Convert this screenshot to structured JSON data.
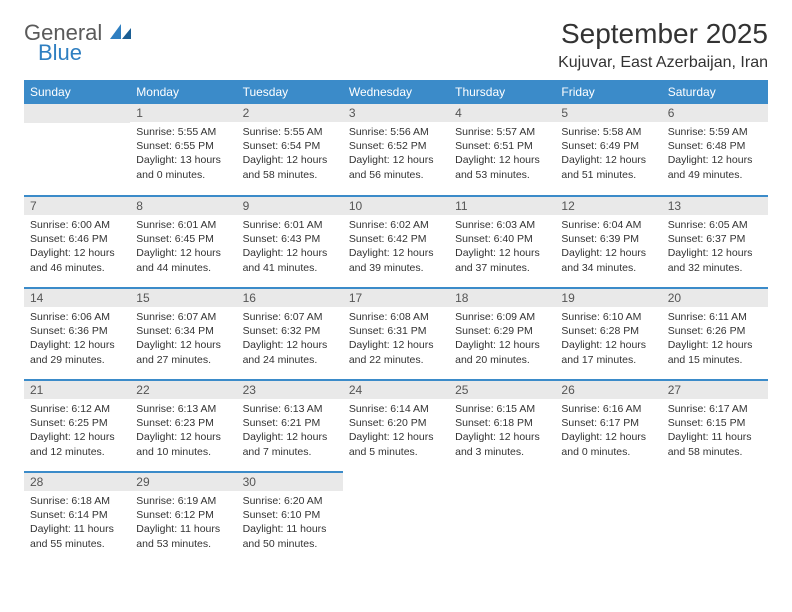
{
  "logo": {
    "line1": "General",
    "line2": "Blue"
  },
  "title": "September 2025",
  "location": "Kujuvar, East Azerbaijan, Iran",
  "header_bg": "#3b8bc9",
  "daynum_bg": "#e9e9e9",
  "weekdays": [
    "Sunday",
    "Monday",
    "Tuesday",
    "Wednesday",
    "Thursday",
    "Friday",
    "Saturday"
  ],
  "weeks": [
    [
      null,
      {
        "n": "1",
        "sr": "Sunrise: 5:55 AM",
        "ss": "Sunset: 6:55 PM",
        "d1": "Daylight: 13 hours",
        "d2": "and 0 minutes."
      },
      {
        "n": "2",
        "sr": "Sunrise: 5:55 AM",
        "ss": "Sunset: 6:54 PM",
        "d1": "Daylight: 12 hours",
        "d2": "and 58 minutes."
      },
      {
        "n": "3",
        "sr": "Sunrise: 5:56 AM",
        "ss": "Sunset: 6:52 PM",
        "d1": "Daylight: 12 hours",
        "d2": "and 56 minutes."
      },
      {
        "n": "4",
        "sr": "Sunrise: 5:57 AM",
        "ss": "Sunset: 6:51 PM",
        "d1": "Daylight: 12 hours",
        "d2": "and 53 minutes."
      },
      {
        "n": "5",
        "sr": "Sunrise: 5:58 AM",
        "ss": "Sunset: 6:49 PM",
        "d1": "Daylight: 12 hours",
        "d2": "and 51 minutes."
      },
      {
        "n": "6",
        "sr": "Sunrise: 5:59 AM",
        "ss": "Sunset: 6:48 PM",
        "d1": "Daylight: 12 hours",
        "d2": "and 49 minutes."
      }
    ],
    [
      {
        "n": "7",
        "sr": "Sunrise: 6:00 AM",
        "ss": "Sunset: 6:46 PM",
        "d1": "Daylight: 12 hours",
        "d2": "and 46 minutes."
      },
      {
        "n": "8",
        "sr": "Sunrise: 6:01 AM",
        "ss": "Sunset: 6:45 PM",
        "d1": "Daylight: 12 hours",
        "d2": "and 44 minutes."
      },
      {
        "n": "9",
        "sr": "Sunrise: 6:01 AM",
        "ss": "Sunset: 6:43 PM",
        "d1": "Daylight: 12 hours",
        "d2": "and 41 minutes."
      },
      {
        "n": "10",
        "sr": "Sunrise: 6:02 AM",
        "ss": "Sunset: 6:42 PM",
        "d1": "Daylight: 12 hours",
        "d2": "and 39 minutes."
      },
      {
        "n": "11",
        "sr": "Sunrise: 6:03 AM",
        "ss": "Sunset: 6:40 PM",
        "d1": "Daylight: 12 hours",
        "d2": "and 37 minutes."
      },
      {
        "n": "12",
        "sr": "Sunrise: 6:04 AM",
        "ss": "Sunset: 6:39 PM",
        "d1": "Daylight: 12 hours",
        "d2": "and 34 minutes."
      },
      {
        "n": "13",
        "sr": "Sunrise: 6:05 AM",
        "ss": "Sunset: 6:37 PM",
        "d1": "Daylight: 12 hours",
        "d2": "and 32 minutes."
      }
    ],
    [
      {
        "n": "14",
        "sr": "Sunrise: 6:06 AM",
        "ss": "Sunset: 6:36 PM",
        "d1": "Daylight: 12 hours",
        "d2": "and 29 minutes."
      },
      {
        "n": "15",
        "sr": "Sunrise: 6:07 AM",
        "ss": "Sunset: 6:34 PM",
        "d1": "Daylight: 12 hours",
        "d2": "and 27 minutes."
      },
      {
        "n": "16",
        "sr": "Sunrise: 6:07 AM",
        "ss": "Sunset: 6:32 PM",
        "d1": "Daylight: 12 hours",
        "d2": "and 24 minutes."
      },
      {
        "n": "17",
        "sr": "Sunrise: 6:08 AM",
        "ss": "Sunset: 6:31 PM",
        "d1": "Daylight: 12 hours",
        "d2": "and 22 minutes."
      },
      {
        "n": "18",
        "sr": "Sunrise: 6:09 AM",
        "ss": "Sunset: 6:29 PM",
        "d1": "Daylight: 12 hours",
        "d2": "and 20 minutes."
      },
      {
        "n": "19",
        "sr": "Sunrise: 6:10 AM",
        "ss": "Sunset: 6:28 PM",
        "d1": "Daylight: 12 hours",
        "d2": "and 17 minutes."
      },
      {
        "n": "20",
        "sr": "Sunrise: 6:11 AM",
        "ss": "Sunset: 6:26 PM",
        "d1": "Daylight: 12 hours",
        "d2": "and 15 minutes."
      }
    ],
    [
      {
        "n": "21",
        "sr": "Sunrise: 6:12 AM",
        "ss": "Sunset: 6:25 PM",
        "d1": "Daylight: 12 hours",
        "d2": "and 12 minutes."
      },
      {
        "n": "22",
        "sr": "Sunrise: 6:13 AM",
        "ss": "Sunset: 6:23 PM",
        "d1": "Daylight: 12 hours",
        "d2": "and 10 minutes."
      },
      {
        "n": "23",
        "sr": "Sunrise: 6:13 AM",
        "ss": "Sunset: 6:21 PM",
        "d1": "Daylight: 12 hours",
        "d2": "and 7 minutes."
      },
      {
        "n": "24",
        "sr": "Sunrise: 6:14 AM",
        "ss": "Sunset: 6:20 PM",
        "d1": "Daylight: 12 hours",
        "d2": "and 5 minutes."
      },
      {
        "n": "25",
        "sr": "Sunrise: 6:15 AM",
        "ss": "Sunset: 6:18 PM",
        "d1": "Daylight: 12 hours",
        "d2": "and 3 minutes."
      },
      {
        "n": "26",
        "sr": "Sunrise: 6:16 AM",
        "ss": "Sunset: 6:17 PM",
        "d1": "Daylight: 12 hours",
        "d2": "and 0 minutes."
      },
      {
        "n": "27",
        "sr": "Sunrise: 6:17 AM",
        "ss": "Sunset: 6:15 PM",
        "d1": "Daylight: 11 hours",
        "d2": "and 58 minutes."
      }
    ],
    [
      {
        "n": "28",
        "sr": "Sunrise: 6:18 AM",
        "ss": "Sunset: 6:14 PM",
        "d1": "Daylight: 11 hours",
        "d2": "and 55 minutes."
      },
      {
        "n": "29",
        "sr": "Sunrise: 6:19 AM",
        "ss": "Sunset: 6:12 PM",
        "d1": "Daylight: 11 hours",
        "d2": "and 53 minutes."
      },
      {
        "n": "30",
        "sr": "Sunrise: 6:20 AM",
        "ss": "Sunset: 6:10 PM",
        "d1": "Daylight: 11 hours",
        "d2": "and 50 minutes."
      },
      null,
      null,
      null,
      null
    ]
  ]
}
